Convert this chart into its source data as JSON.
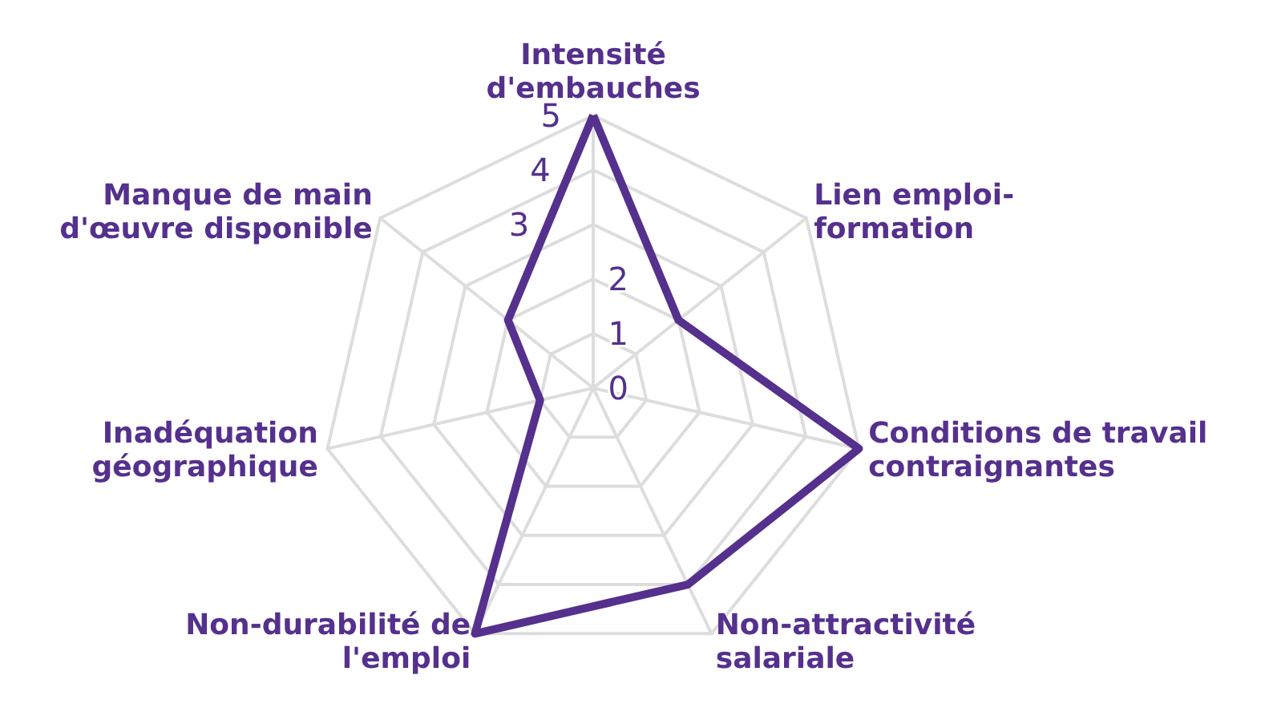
{
  "chart_data": {
    "type": "radar",
    "categories": [
      "Intensité\nd'embauches",
      "Lien emploi-\nformation",
      "Conditions de travail\ncontraignantes",
      "Non-attractivité\nsalariale",
      "Non-durabilité de\nl'emploi",
      "Inadéquation\ngéographique",
      "Manque de main\nd'œuvre disponible"
    ],
    "series": [
      {
        "color": "#55308d",
        "values": [
          5,
          2,
          5,
          4,
          5,
          1,
          2
        ]
      }
    ],
    "ylim": [
      0,
      5
    ],
    "yticks": [
      0,
      1,
      2,
      3,
      4,
      5
    ],
    "grid": true,
    "marker": "none",
    "line_style": "solid"
  }
}
